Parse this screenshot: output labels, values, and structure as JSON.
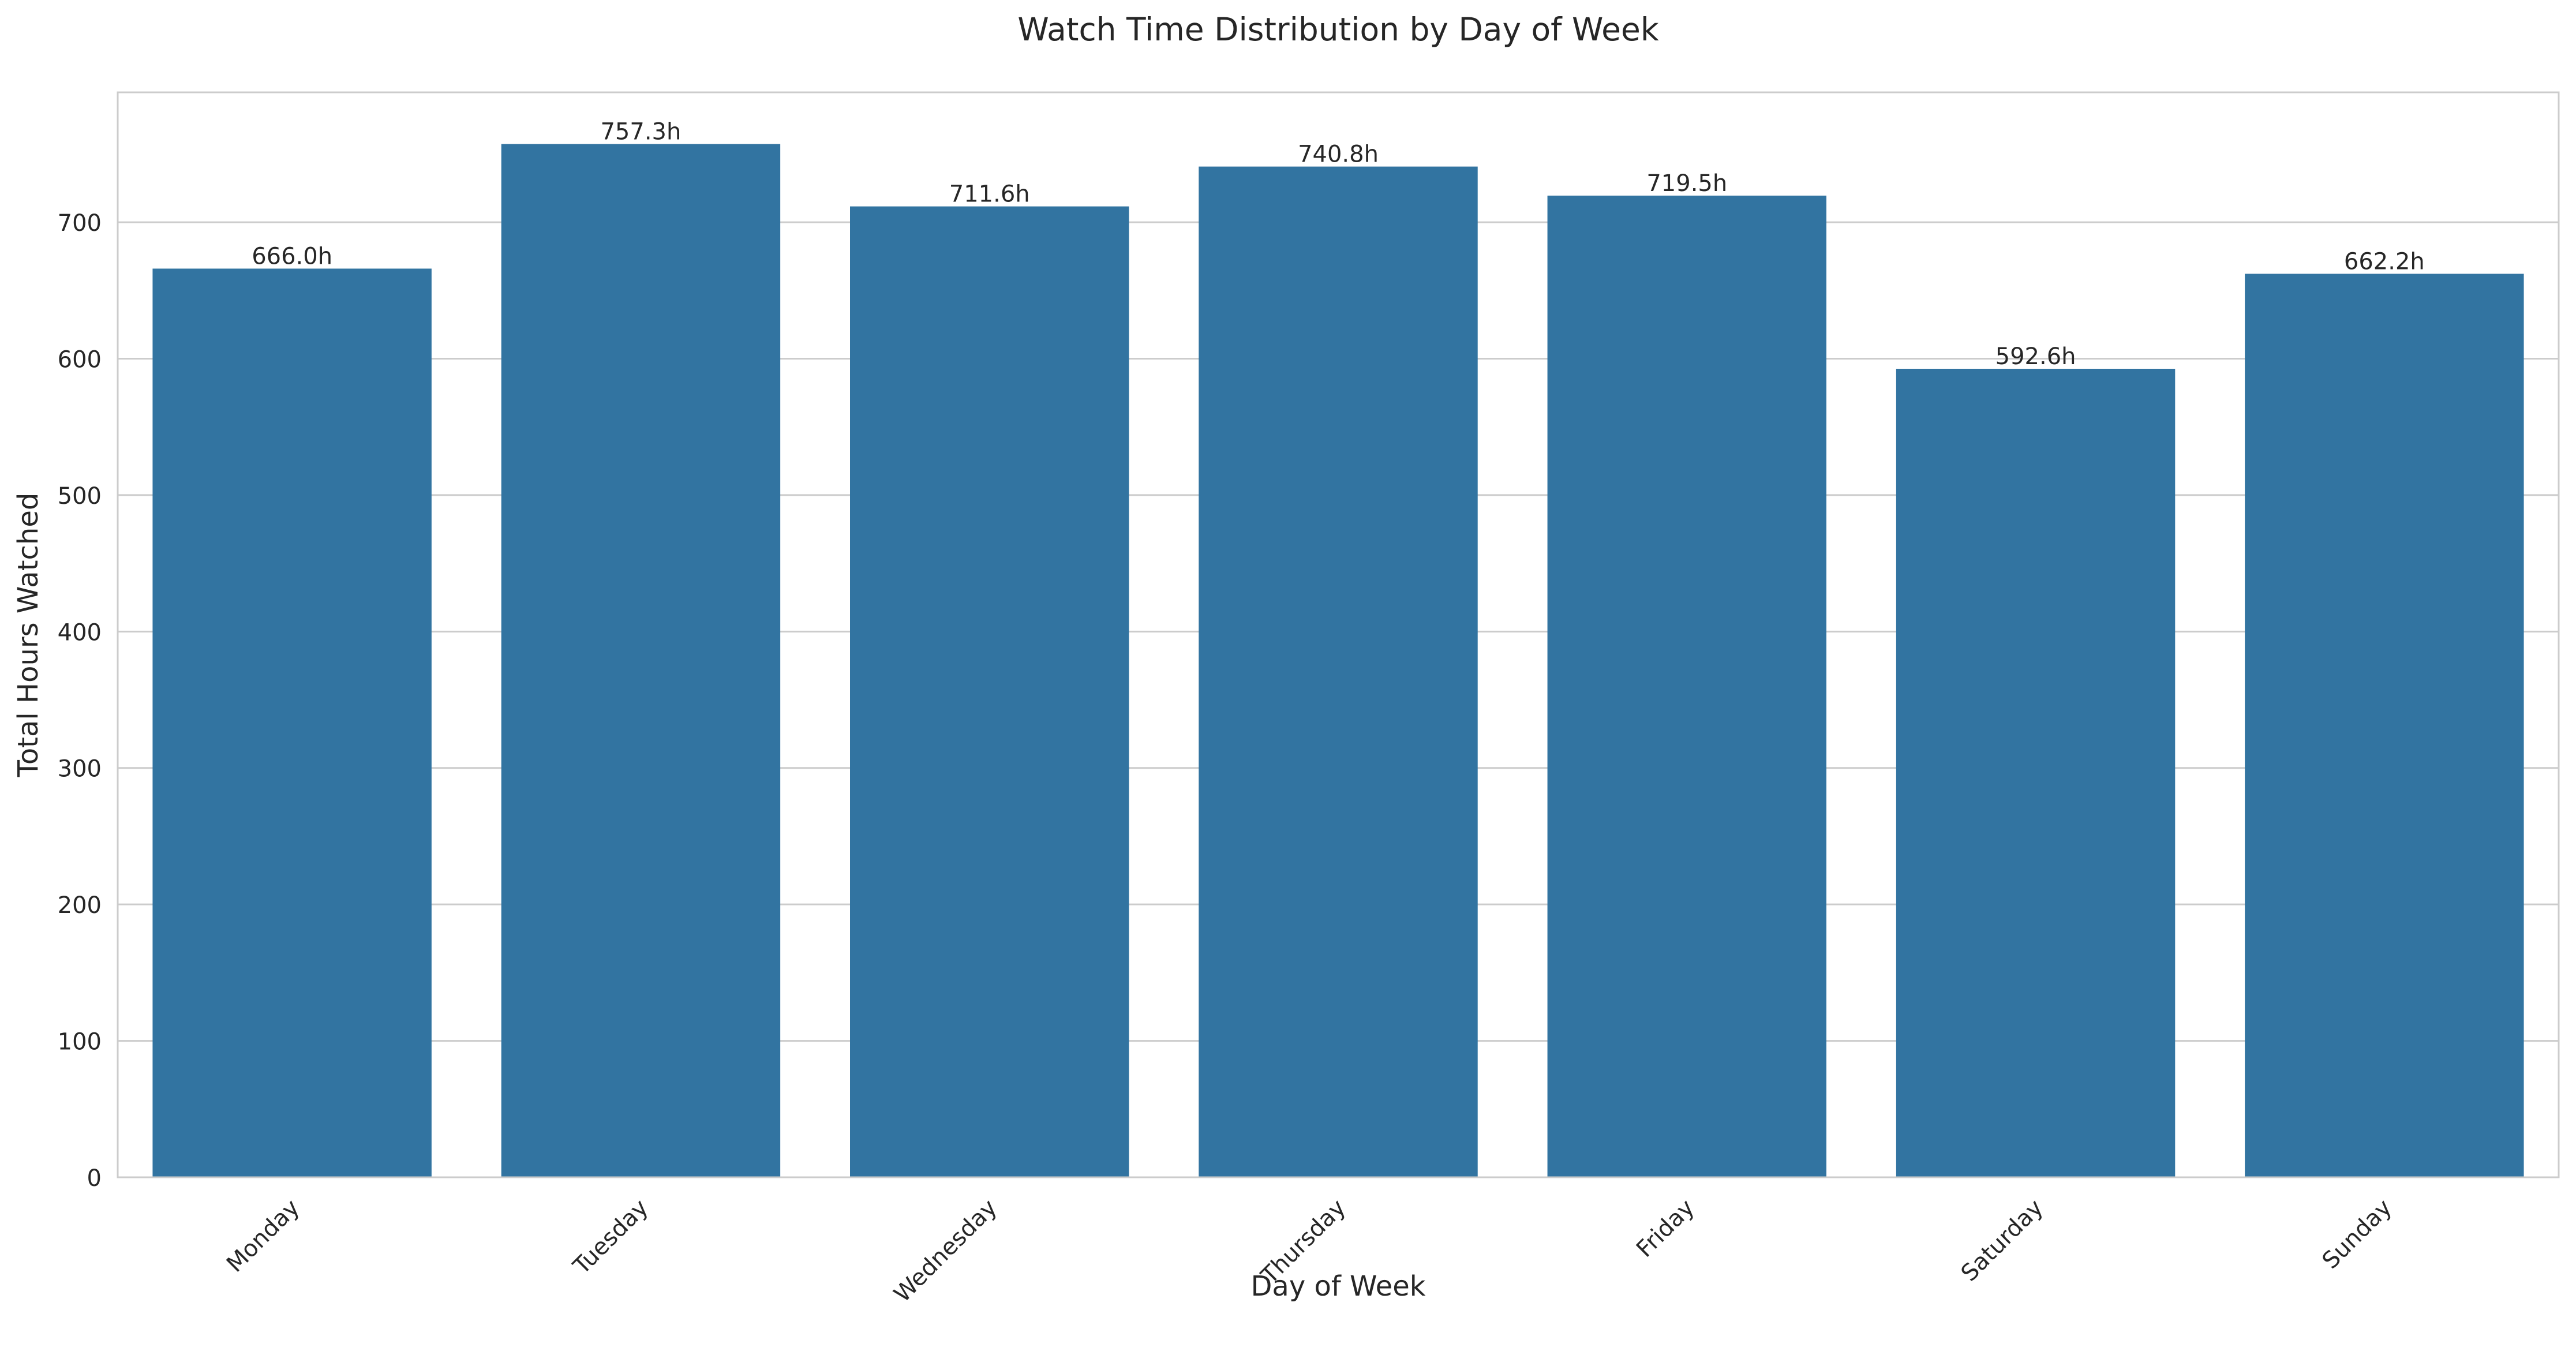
{
  "chart_data": {
    "type": "bar",
    "title": "Watch Time Distribution by Day of Week",
    "xlabel": "Day of Week",
    "ylabel": "Total Hours Watched",
    "categories": [
      "Monday",
      "Tuesday",
      "Wednesday",
      "Thursday",
      "Friday",
      "Saturday",
      "Sunday"
    ],
    "values": [
      666.0,
      757.3,
      711.6,
      740.8,
      719.5,
      592.6,
      662.2
    ],
    "value_labels": [
      "666.0h",
      "757.3h",
      "711.6h",
      "740.8h",
      "719.5h",
      "592.6h",
      "662.2h"
    ],
    "ylim": [
      0,
      795.2
    ],
    "yticks": [
      0,
      100,
      200,
      300,
      400,
      500,
      600,
      700
    ],
    "ytick_labels": [
      "0",
      "100",
      "200",
      "300",
      "400",
      "500",
      "600",
      "700"
    ],
    "grid": true,
    "legend": "none",
    "bar_color": "#3274a1",
    "grid_color": "#cccccc",
    "background_color": "#ffffff"
  }
}
